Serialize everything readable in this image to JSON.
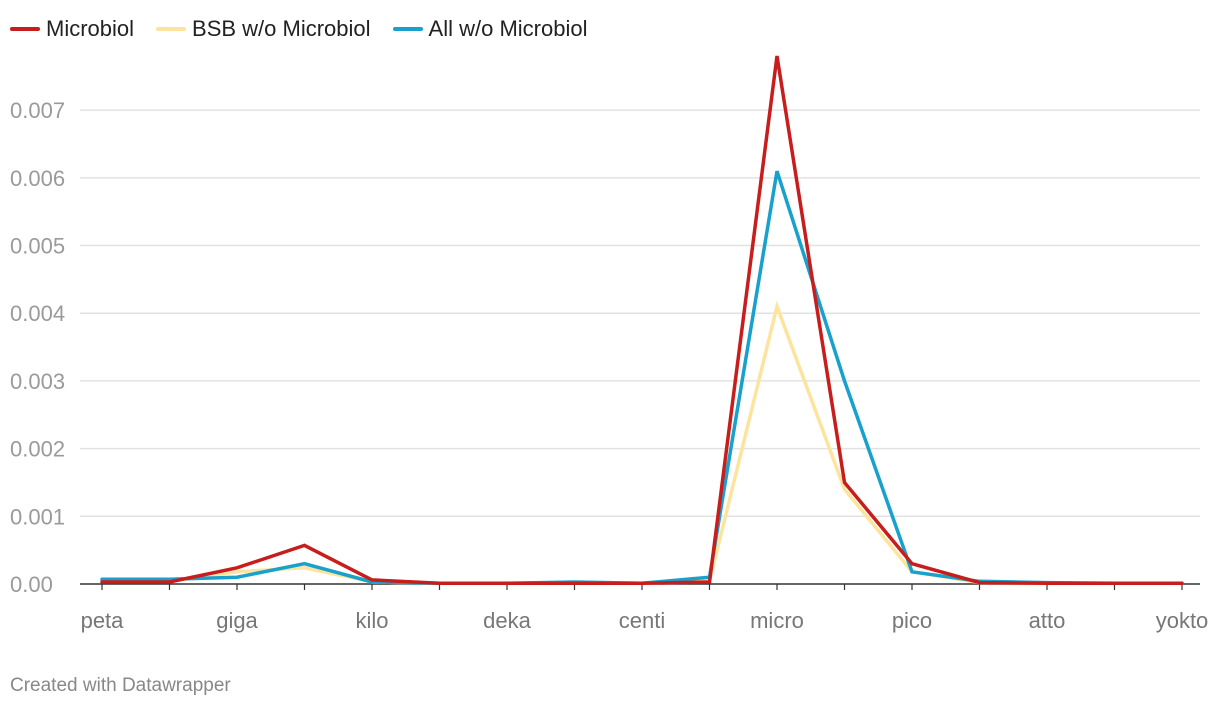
{
  "chart_data": {
    "type": "line",
    "x": [
      "peta",
      "",
      "giga",
      "",
      "kilo",
      "",
      "deka",
      "",
      "centi",
      "",
      "micro",
      "",
      "pico",
      "",
      "atto",
      "",
      "yokto"
    ],
    "tick_labels": [
      "peta",
      "giga",
      "kilo",
      "deka",
      "centi",
      "micro",
      "pico",
      "atto",
      "yokto"
    ],
    "ylim": [
      0,
      0.0078
    ],
    "yticks": [
      "0.00",
      "0.001",
      "0.002",
      "0.003",
      "0.004",
      "0.005",
      "0.006",
      "0.007"
    ],
    "ytick_values": [
      0,
      0.001,
      0.002,
      0.003,
      0.004,
      0.005,
      0.006,
      0.007
    ],
    "grid": true,
    "legend_position": "top-left",
    "series": [
      {
        "name": "Microbiol",
        "color": "#c71e1d",
        "values": [
          3e-05,
          3e-05,
          0.00024,
          0.00057,
          6e-05,
          1e-05,
          1e-05,
          1e-05,
          1e-05,
          3e-05,
          0.0078,
          0.0015,
          0.0003,
          2e-05,
          1e-05,
          1e-05,
          1e-05
        ]
      },
      {
        "name": "BSB w/o Microbiol",
        "color": "#fde49e",
        "values": [
          4e-05,
          4e-05,
          0.00018,
          0.00024,
          3e-05,
          1e-05,
          1e-05,
          1e-05,
          1e-05,
          4e-05,
          0.0041,
          0.0014,
          0.00018,
          2e-05,
          1e-05,
          1e-05,
          1e-05
        ]
      },
      {
        "name": "All w/o Microbiol",
        "color": "#18a1cd",
        "values": [
          7e-05,
          7e-05,
          0.0001,
          0.0003,
          3e-05,
          1e-05,
          1e-05,
          3e-05,
          1e-05,
          0.0001,
          0.0061,
          0.003,
          0.00018,
          4e-05,
          2e-05,
          1e-05,
          1e-05
        ]
      }
    ]
  },
  "footer": {
    "credit": "Created with Datawrapper"
  }
}
